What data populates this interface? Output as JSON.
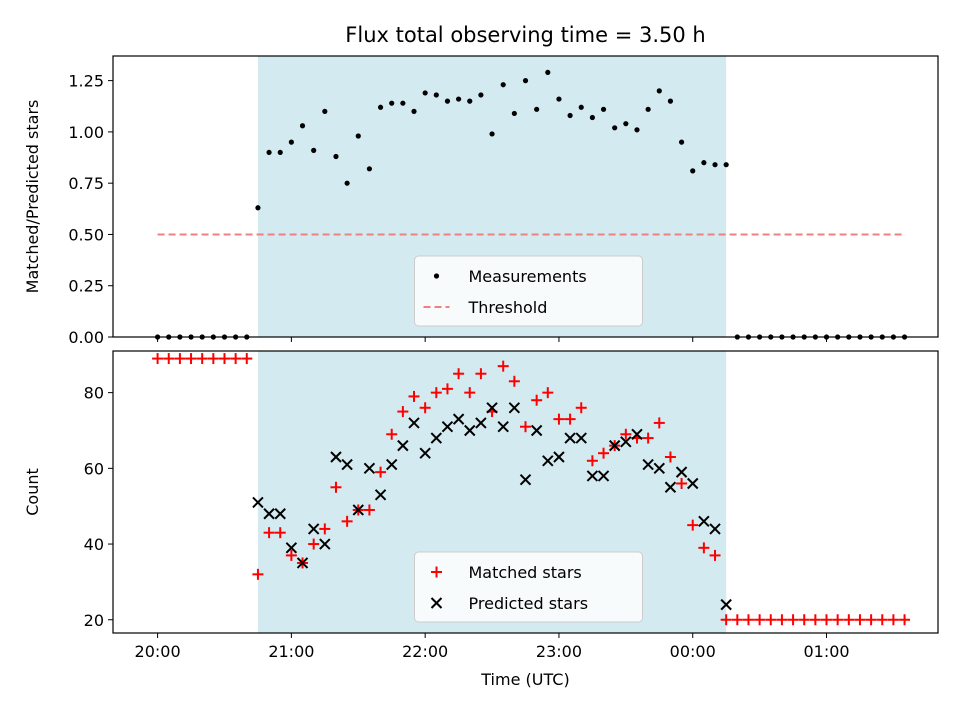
{
  "chart_data": [
    {
      "type": "scatter",
      "panel": "top",
      "title": "Flux total observing time = 3.50 h",
      "xlabel": "",
      "ylabel": "Matched/Predicted stars",
      "ylim": [
        0,
        1.37
      ],
      "yticks": [
        0,
        0.25,
        0.5,
        0.75,
        1.0,
        1.25
      ],
      "ytick_labels": [
        "0.00",
        "0.25",
        "0.50",
        "0.75",
        "1.00",
        "1.25"
      ],
      "xlim": [
        -20,
        350
      ],
      "xticks": [
        0,
        60,
        120,
        180,
        240,
        300
      ],
      "xtick_labels": [
        "",
        "",
        "",
        "",
        "",
        ""
      ],
      "x_units": "minutes after 20:00 UTC",
      "shaded_span": [
        45,
        255
      ],
      "shade_color": "#d4eaf1",
      "legend_position": "lower center",
      "series": [
        {
          "name": "Measurements",
          "marker": "dot",
          "color": "#000000",
          "x": [
            0,
            5,
            10,
            15,
            20,
            25,
            30,
            35,
            40,
            45,
            50,
            55,
            60,
            65,
            70,
            75,
            80,
            85,
            90,
            95,
            100,
            105,
            110,
            115,
            120,
            125,
            130,
            135,
            140,
            145,
            150,
            155,
            160,
            165,
            170,
            175,
            180,
            185,
            190,
            195,
            200,
            205,
            210,
            215,
            220,
            225,
            230,
            235,
            240,
            245,
            250,
            255,
            260,
            265,
            270,
            275,
            280,
            285,
            290,
            295,
            300,
            305,
            310,
            315,
            320,
            325,
            330,
            335
          ],
          "y": [
            0,
            0,
            0,
            0,
            0,
            0,
            0,
            0,
            0,
            0.63,
            0.9,
            0.9,
            0.95,
            1.03,
            0.91,
            1.1,
            0.88,
            0.75,
            0.98,
            0.82,
            1.12,
            1.14,
            1.14,
            1.1,
            1.19,
            1.18,
            1.15,
            1.16,
            1.15,
            1.18,
            0.99,
            1.23,
            1.09,
            1.25,
            1.11,
            1.29,
            1.16,
            1.08,
            1.12,
            1.07,
            1.11,
            1.02,
            1.04,
            1.01,
            1.11,
            1.2,
            1.15,
            0.95,
            0.81,
            0.85,
            0.84,
            0.84,
            0,
            0,
            0,
            0,
            0,
            0,
            0,
            0,
            0,
            0,
            0,
            0,
            0,
            0,
            0,
            0
          ]
        },
        {
          "name": "Threshold",
          "style": "dashed-line",
          "color": "#f08080",
          "x": [
            0,
            335
          ],
          "y": [
            0.5,
            0.5
          ]
        }
      ]
    },
    {
      "type": "scatter",
      "panel": "bottom",
      "title": "",
      "xlabel": "Time (UTC)",
      "ylabel": "Count",
      "ylim": [
        16.5,
        91
      ],
      "yticks": [
        20,
        40,
        60,
        80
      ],
      "ytick_labels": [
        "20",
        "40",
        "60",
        "80"
      ],
      "xlim": [
        -20,
        350
      ],
      "xticks": [
        0,
        60,
        120,
        180,
        240,
        300
      ],
      "xtick_labels": [
        "20:00",
        "21:00",
        "22:00",
        "23:00",
        "00:00",
        "01:00"
      ],
      "x_units": "minutes after 20:00 UTC",
      "shaded_span": [
        45,
        255
      ],
      "shade_color": "#d4eaf1",
      "legend_position": "lower center",
      "series": [
        {
          "name": "Matched stars",
          "marker": "plus",
          "color": "#ff0000",
          "x": [
            0,
            5,
            10,
            15,
            20,
            25,
            30,
            35,
            40,
            45,
            50,
            55,
            60,
            65,
            70,
            75,
            80,
            85,
            90,
            95,
            100,
            105,
            110,
            115,
            120,
            125,
            130,
            135,
            140,
            145,
            150,
            155,
            160,
            165,
            170,
            175,
            180,
            185,
            190,
            195,
            200,
            205,
            210,
            215,
            220,
            225,
            230,
            235,
            240,
            245,
            250,
            255,
            260,
            265,
            270,
            275,
            280,
            285,
            290,
            295,
            300,
            305,
            310,
            315,
            320,
            325,
            330,
            335
          ],
          "y": [
            89,
            89,
            89,
            89,
            89,
            89,
            89,
            89,
            89,
            32,
            43,
            43,
            37,
            35,
            40,
            44,
            55,
            46,
            49,
            49,
            59,
            69,
            75,
            79,
            76,
            80,
            81,
            85,
            80,
            85,
            75,
            87,
            83,
            71,
            78,
            80,
            73,
            73,
            76,
            62,
            64,
            66,
            69,
            68,
            68,
            72,
            63,
            56,
            45,
            39,
            37,
            20,
            20,
            20,
            20,
            20,
            20,
            20,
            20,
            20,
            20,
            20,
            20,
            20,
            20,
            20,
            20,
            20
          ]
        },
        {
          "name": "Predicted stars",
          "marker": "x",
          "color": "#000000",
          "x": [
            45,
            50,
            55,
            60,
            65,
            70,
            75,
            80,
            85,
            90,
            95,
            100,
            105,
            110,
            115,
            120,
            125,
            130,
            135,
            140,
            145,
            150,
            155,
            160,
            165,
            170,
            175,
            180,
            185,
            190,
            195,
            200,
            205,
            210,
            215,
            220,
            225,
            230,
            235,
            240,
            245,
            250,
            255
          ],
          "y": [
            51,
            48,
            48,
            39,
            35,
            44,
            40,
            63,
            61,
            49,
            60,
            53,
            61,
            66,
            72,
            64,
            68,
            71,
            73,
            70,
            72,
            76,
            71,
            76,
            57,
            70,
            62,
            63,
            68,
            68,
            58,
            58,
            66,
            67,
            69,
            61,
            60,
            55,
            59,
            56,
            46,
            44,
            24
          ]
        }
      ]
    }
  ]
}
